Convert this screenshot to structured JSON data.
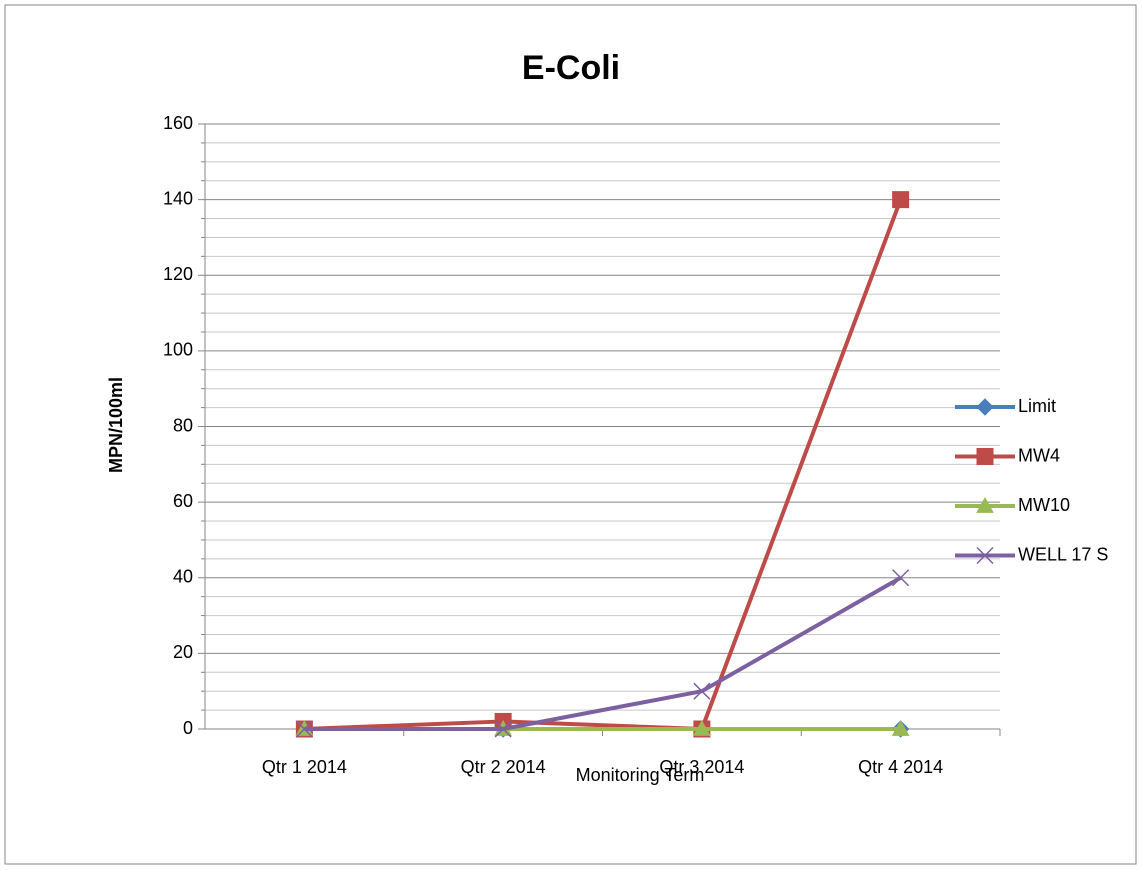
{
  "chart_data": {
    "type": "line",
    "title": "E-Coli",
    "x_label": "Monitoring Term",
    "y_label": "MPN/100ml",
    "categories": [
      "Qtr 1 2014",
      "Qtr 2 2014",
      "Qtr 3 2014",
      "Qtr 4 2014"
    ],
    "series": [
      {
        "name": "Limit",
        "color": "#4a7ebb",
        "marker": "diamond",
        "values": [
          0,
          0,
          0,
          0
        ]
      },
      {
        "name": "MW4",
        "color": "#be4b48",
        "marker": "square",
        "values": [
          0,
          2,
          0,
          140
        ]
      },
      {
        "name": "MW10",
        "color": "#98b954",
        "marker": "triangle",
        "values": [
          0,
          0,
          0,
          0
        ]
      },
      {
        "name": "WELL 17 S",
        "color": "#7d60a0",
        "marker": "x",
        "values": [
          0,
          0,
          10,
          40
        ]
      }
    ],
    "ylim": [
      0,
      160
    ],
    "yticks": [
      0,
      20,
      40,
      60,
      80,
      100,
      120,
      140,
      160
    ],
    "minor_yticks": [
      5,
      10,
      15,
      25,
      30,
      35,
      45,
      50,
      55,
      65,
      70,
      75,
      85,
      90,
      95,
      105,
      110,
      115,
      125,
      130,
      135,
      145,
      150,
      155
    ],
    "grid": true,
    "legend": "right"
  }
}
